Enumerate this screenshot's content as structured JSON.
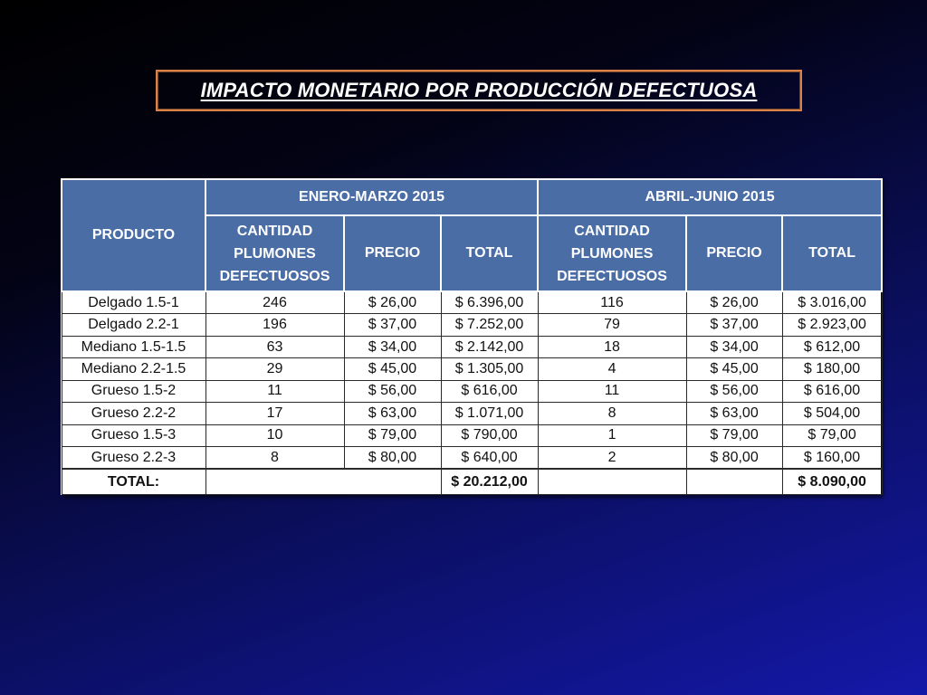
{
  "title": "IMPACTO MONETARIO POR PRODUCCIÓN DEFECTUOSA",
  "table": {
    "product_header": "PRODUCTO",
    "groups": [
      {
        "label": "ENERO-MARZO 2015"
      },
      {
        "label": "ABRIL-JUNIO 2015"
      }
    ],
    "sub_headers": {
      "quantity_lines": [
        "CANTIDAD",
        "PLUMONES",
        "DEFECTUOSOS"
      ],
      "price": "PRECIO",
      "total": "TOTAL"
    },
    "rows": [
      {
        "product": "Delgado 1.5-1",
        "q1_qty": "246",
        "q1_price": "$ 26,00",
        "q1_total": "$ 6.396,00",
        "q2_qty": "116",
        "q2_price": "$ 26,00",
        "q2_total": "$ 3.016,00"
      },
      {
        "product": "Delgado 2.2-1",
        "q1_qty": "196",
        "q1_price": "$ 37,00",
        "q1_total": "$ 7.252,00",
        "q2_qty": "79",
        "q2_price": "$ 37,00",
        "q2_total": "$ 2.923,00"
      },
      {
        "product": "Mediano 1.5-1.5",
        "q1_qty": "63",
        "q1_price": "$ 34,00",
        "q1_total": "$ 2.142,00",
        "q2_qty": "18",
        "q2_price": "$ 34,00",
        "q2_total": "$ 612,00"
      },
      {
        "product": "Mediano 2.2-1.5",
        "q1_qty": "29",
        "q1_price": "$ 45,00",
        "q1_total": "$ 1.305,00",
        "q2_qty": "4",
        "q2_price": "$ 45,00",
        "q2_total": "$ 180,00"
      },
      {
        "product": "Grueso 1.5-2",
        "q1_qty": "11",
        "q1_price": "$ 56,00",
        "q1_total": "$ 616,00",
        "q2_qty": "11",
        "q2_price": "$ 56,00",
        "q2_total": "$ 616,00"
      },
      {
        "product": "Grueso 2.2-2",
        "q1_qty": "17",
        "q1_price": "$ 63,00",
        "q1_total": "$ 1.071,00",
        "q2_qty": "8",
        "q2_price": "$ 63,00",
        "q2_total": "$ 504,00"
      },
      {
        "product": "Grueso 1.5-3",
        "q1_qty": "10",
        "q1_price": "$ 79,00",
        "q1_total": "$ 790,00",
        "q2_qty": "1",
        "q2_price": "$ 79,00",
        "q2_total": "$ 79,00"
      },
      {
        "product": "Grueso 2.2-3",
        "q1_qty": "8",
        "q1_price": "$ 80,00",
        "q1_total": "$ 640,00",
        "q2_qty": "2",
        "q2_price": "$ 80,00",
        "q2_total": "$ 160,00"
      }
    ],
    "totals": {
      "label": "TOTAL:",
      "q1_total": "$ 20.212,00",
      "q2_total": "$ 8.090,00"
    }
  }
}
